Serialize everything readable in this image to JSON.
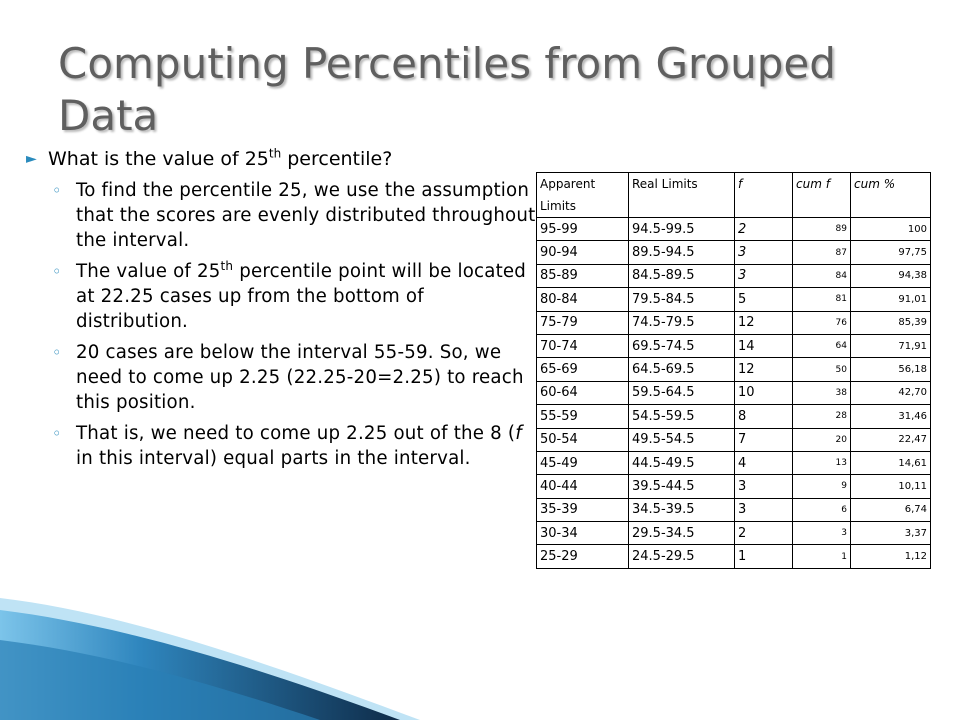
{
  "slide": {
    "title": "Computing Percentiles from Grouped Data",
    "question": {
      "pre": "What is the value of 25",
      "sup": "th",
      "post": " percentile?"
    },
    "points": [
      {
        "pre": "To find the percentile 25, we use the assumption that the scores are evenly distributed throughout the interval.",
        "sup": "",
        "post": "",
        "italic": "",
        "tail": ""
      },
      {
        "pre": "The value of 25",
        "sup": "th",
        "post": " percentile point will be located at 22.25 cases up from the bottom of distribution.",
        "italic": "",
        "tail": ""
      },
      {
        "pre": "20 cases are below the interval 55-59. So, we need to come up 2.25 (22.25-20=2.25) to reach this position.",
        "sup": "",
        "post": "",
        "italic": "",
        "tail": ""
      },
      {
        "pre": "That is, we need to come up 2.25 out of the 8 (",
        "sup": "",
        "post": "",
        "italic": "f",
        "tail": " in this interval) equal parts in the interval."
      }
    ]
  },
  "table": {
    "headers": [
      "Apparent Limits",
      "Real Limits",
      "f",
      "cum f",
      "cum %"
    ],
    "rows": [
      [
        "95-99",
        "94.5-99.5",
        "2",
        "89",
        "100"
      ],
      [
        "90-94",
        "89.5-94.5",
        "3",
        "87",
        "97,75"
      ],
      [
        "85-89",
        "84.5-89.5",
        "3",
        "84",
        "94,38"
      ],
      [
        "80-84",
        "79.5-84.5",
        "5",
        "81",
        "91,01"
      ],
      [
        "75-79",
        "74.5-79.5",
        "12",
        "76",
        "85,39"
      ],
      [
        "70-74",
        "69.5-74.5",
        "14",
        "64",
        "71,91"
      ],
      [
        "65-69",
        "64.5-69.5",
        "12",
        "50",
        "56,18"
      ],
      [
        "60-64",
        "59.5-64.5",
        "10",
        "38",
        "42,70"
      ],
      [
        "55-59",
        "54.5-59.5",
        "8",
        "28",
        "31,46"
      ],
      [
        "50-54",
        "49.5-54.5",
        "7",
        "20",
        "22,47"
      ],
      [
        "45-49",
        "44.5-49.5",
        "4",
        "13",
        "14,61"
      ],
      [
        "40-44",
        "39.5-44.5",
        "3",
        "9",
        "10,11"
      ],
      [
        "35-39",
        "34.5-39.5",
        "3",
        "6",
        "6,74"
      ],
      [
        "30-34",
        "29.5-34.5",
        "2",
        "3",
        "3,37"
      ],
      [
        "25-29",
        "24.5-29.5",
        "1",
        "1",
        "1,12"
      ]
    ]
  },
  "colors": {
    "accent": "#2a8bbd",
    "title": "#5f5f5f",
    "wave_dark": "#0e2b48",
    "wave_light": "#5bb4e0"
  }
}
